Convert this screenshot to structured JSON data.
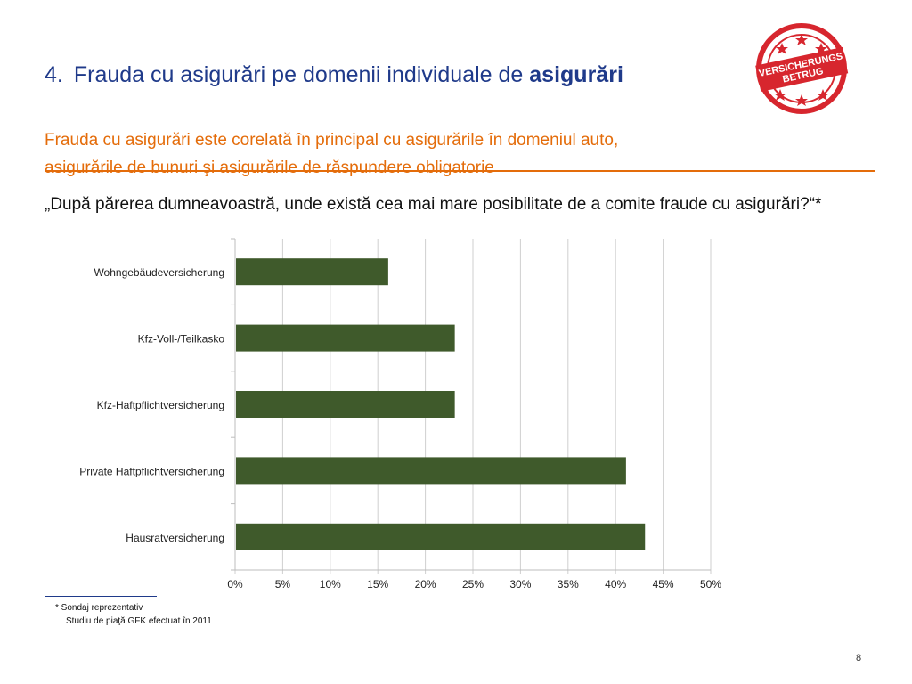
{
  "header": {
    "number": "4.",
    "title_regular": "Frauda cu asigurări pe domenii individuale de",
    "title_bold": "asigurări"
  },
  "subtitle": {
    "line1": "Frauda cu asigurări este corelată în principal cu asigurările în domeniul auto,",
    "line2": "asigurările de bunuri şi asigurările de răspundere obligatorie"
  },
  "question": "„După părerea dumneavoastră, unde există cea mai mare posibilitate de a comite fraude cu asigurări?“*",
  "stamp": {
    "line1": "VERSICHERUNGS",
    "line2": "BETRUG",
    "color": "#d7262e"
  },
  "chart_data": {
    "type": "bar",
    "orientation": "horizontal",
    "categories": [
      "Wohngebäudeversicherung",
      "Kfz-Voll-/Teilkasko",
      "Kfz-Haftpflichtversicherung",
      "Private Haftpflichtversicherung",
      "Hausratversicherung"
    ],
    "values": [
      16,
      23,
      23,
      41,
      43
    ],
    "xlim": [
      0,
      50
    ],
    "xticks": [
      "0%",
      "5%",
      "10%",
      "15%",
      "20%",
      "25%",
      "30%",
      "35%",
      "40%",
      "45%",
      "50%"
    ],
    "xtick_values": [
      0,
      5,
      10,
      15,
      20,
      25,
      30,
      35,
      40,
      45,
      50
    ],
    "grid": "vertical",
    "bar_color": "#3f5a2b",
    "title": "",
    "xlabel": "",
    "ylabel": ""
  },
  "footnote": {
    "line1": "* Sondaj reprezentativ",
    "line2": "Studiu de piaţă GFK efectuat în 2011"
  },
  "page_number": "8"
}
